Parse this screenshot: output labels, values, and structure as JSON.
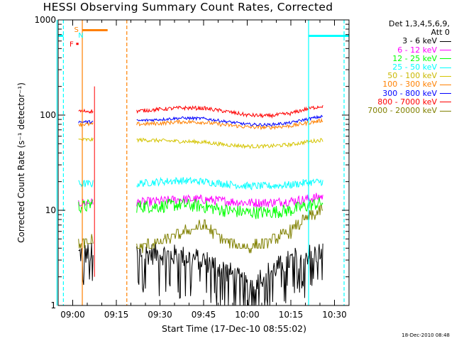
{
  "title": "HESSI Observing Summary Count Rates, Corrected",
  "legend": {
    "header_line1": "Det 1,3,4,5,6,9,",
    "header_line2": "Att 0"
  },
  "footer_timestamp": "18-Dec-2010 08:48",
  "chart_data": {
    "type": "line",
    "title": "HESSI Observing Summary Count Rates, Corrected",
    "xlabel": "Start Time (17-Dec-10 08:55:02)",
    "ylabel": "Corrected Count Rate (s⁻¹ detector⁻¹)",
    "y_scale": "log",
    "ylim": [
      1,
      1000
    ],
    "xlim_minutes_of_day": [
      535.0,
      635.0
    ],
    "x_ticks": [
      "09:00",
      "09:15",
      "09:30",
      "09:45",
      "10:00",
      "10:15",
      "10:30"
    ],
    "y_ticks": [
      "1",
      "10",
      "100",
      "1000"
    ],
    "grid": false,
    "legend_position": "right",
    "data_gaps": [
      [
        "09:07",
        "09:22"
      ],
      [
        "10:26",
        "10:35"
      ]
    ],
    "flag_marks": [
      {
        "label": "S",
        "color": "#ff8000",
        "y": 800
      },
      {
        "label": "N",
        "color": "#00ffff",
        "y": 700
      },
      {
        "label": "F",
        "color": "#ff0000",
        "y": 560
      }
    ],
    "x": [
      "09:02",
      "09:05",
      "09:07",
      "09:22",
      "09:30",
      "09:37",
      "09:45",
      "09:52",
      "10:00",
      "10:07",
      "10:15",
      "10:20",
      "10:26"
    ],
    "series": [
      {
        "name": "3 - 6 keV",
        "color": "#000000",
        "values": [
          3.5,
          3.5,
          3.5,
          3.5,
          3.5,
          3.3,
          3.0,
          2.4,
          1.6,
          2.2,
          3.0,
          3.4,
          3.6
        ]
      },
      {
        "name": "6 - 12 keV",
        "color": "#ff00ff",
        "values": [
          12,
          12,
          12,
          12,
          12.5,
          13,
          13,
          12.5,
          12,
          12,
          12.5,
          13,
          14
        ]
      },
      {
        "name": "12 - 25 keV",
        "color": "#00ff00",
        "values": [
          11,
          11,
          12,
          11,
          11,
          11.5,
          11,
          10,
          9.5,
          9.5,
          10,
          11,
          12
        ]
      },
      {
        "name": "25 - 50 keV",
        "color": "#00ffff",
        "values": [
          19,
          19,
          19,
          19,
          20,
          20.5,
          20,
          19,
          18,
          18,
          18.5,
          19.5,
          20
        ]
      },
      {
        "name": "50 - 100 keV",
        "color": "#d4c400",
        "values": [
          55,
          55,
          55,
          55,
          54,
          53,
          52,
          49,
          47,
          47,
          49,
          52,
          55
        ]
      },
      {
        "name": "100 - 300 keV",
        "color": "#ff8000",
        "values": [
          80,
          80,
          80,
          80,
          82,
          85,
          84,
          79,
          75,
          74,
          77,
          82,
          88
        ]
      },
      {
        "name": "300 - 800 keV",
        "color": "#0000ff",
        "values": [
          85,
          85,
          85,
          87,
          90,
          93,
          92,
          86,
          80,
          79,
          83,
          90,
          97
        ]
      },
      {
        "name": "800 - 7000 keV",
        "color": "#ff0000",
        "values": [
          110,
          110,
          110,
          110,
          115,
          119,
          118,
          110,
          100,
          98,
          104,
          115,
          125
        ]
      },
      {
        "name": "7000 - 20000 keV",
        "color": "#808000",
        "values": [
          4.2,
          4.4,
          5.0,
          4.0,
          4.6,
          5.6,
          7.0,
          4.8,
          4.0,
          4.6,
          6.0,
          8.0,
          10.0
        ]
      }
    ]
  }
}
